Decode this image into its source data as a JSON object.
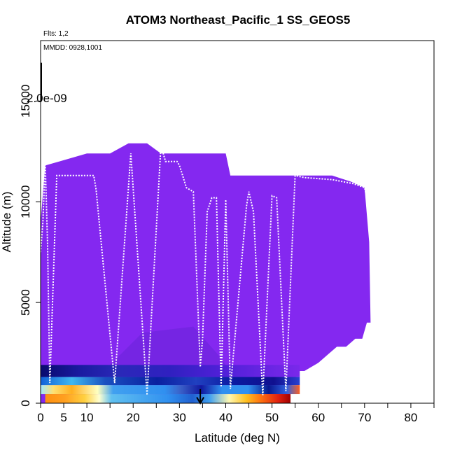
{
  "chart_data": {
    "type": "heatmap",
    "title": "ATOM3 Northeast_Pacific_1 SS_GEOS5",
    "xlabel": "Latitude (deg N)",
    "ylabel": "Altitude (m)",
    "xlim": [
      0,
      85
    ],
    "ylim": [
      0,
      18000
    ],
    "x_ticks": [
      0,
      5,
      10,
      20,
      30,
      40,
      50,
      60,
      70,
      80
    ],
    "y_ticks": [
      0,
      5000,
      10000,
      15000
    ],
    "colorbar_label": "2.0e-09",
    "annotations": {
      "flights": "Flts: 1,2",
      "dates": "MMDD: 0928,1001"
    },
    "arrow_marker_latitude": 34.5,
    "background_color": "#8428f0",
    "flight_track_color": "#ffffff",
    "plateau_latitudes": [
      [
        1.5,
        11.5,
        11000
      ],
      [
        11.5,
        34.5,
        12800
      ],
      [
        34.5,
        55.5,
        12200
      ],
      [
        55.5,
        71.5,
        11200
      ]
    ],
    "cloud_edge": [
      [
        0,
        9000
      ],
      [
        1,
        11800
      ],
      [
        4,
        12000
      ],
      [
        10,
        12400
      ],
      [
        15,
        12400
      ],
      [
        19,
        12900
      ],
      [
        23,
        12900
      ],
      [
        26,
        12400
      ],
      [
        40,
        12400
      ],
      [
        41,
        11300
      ],
      [
        53,
        11300
      ],
      [
        57,
        11300
      ],
      [
        63,
        11300
      ],
      [
        67,
        11000
      ],
      [
        70,
        10700
      ],
      [
        71,
        8000
      ],
      [
        71.3,
        4000
      ],
      [
        70.5,
        4000
      ],
      [
        69.5,
        3200
      ],
      [
        68,
        3200
      ],
      [
        66,
        2800
      ],
      [
        64,
        2800
      ],
      [
        62,
        2400
      ],
      [
        60,
        2000
      ],
      [
        57,
        1600
      ],
      [
        56,
        1600
      ],
      [
        55,
        1200
      ],
      [
        54,
        800
      ],
      [
        53.5,
        0
      ]
    ],
    "flight_track": [
      [
        0,
        7500
      ],
      [
        0.5,
        9000
      ],
      [
        1,
        11900
      ],
      [
        1.5,
        8000
      ],
      [
        2,
        1000
      ],
      [
        3.5,
        11300
      ],
      [
        11.5,
        11300
      ],
      [
        12,
        10600
      ],
      [
        16,
        1000
      ],
      [
        19.5,
        12400
      ],
      [
        23,
        400
      ],
      [
        26,
        12800
      ],
      [
        27,
        12000
      ],
      [
        29.5,
        12000
      ],
      [
        30,
        11800
      ],
      [
        31.5,
        10700
      ],
      [
        33,
        10500
      ],
      [
        34.5,
        1800
      ],
      [
        35,
        3200
      ],
      [
        36,
        9500
      ],
      [
        37,
        10200
      ],
      [
        38,
        10200
      ],
      [
        39,
        800
      ],
      [
        40,
        10100
      ],
      [
        41,
        700
      ],
      [
        44.5,
        9800
      ],
      [
        45,
        10500
      ],
      [
        46,
        9500
      ],
      [
        48,
        400
      ],
      [
        50,
        10300
      ],
      [
        51,
        10200
      ],
      [
        53,
        600
      ],
      [
        55,
        11300
      ],
      [
        57,
        11200
      ],
      [
        63,
        11100
      ],
      [
        67.5,
        10900
      ],
      [
        70,
        10700
      ],
      [
        70.5,
        10200
      ]
    ],
    "boundary_layer": [
      {
        "alt": [
          1300,
          1900
        ],
        "stops": [
          [
            0,
            "#080b6e"
          ],
          [
            0.15,
            "#1a1aa0"
          ],
          [
            0.3,
            "#2a28b8"
          ],
          [
            0.5,
            "#3020c0"
          ],
          [
            0.7,
            "#5020d8"
          ],
          [
            1,
            "#7a28ea"
          ]
        ],
        "xrange": [
          0,
          56
        ]
      },
      {
        "alt": [
          900,
          1300
        ],
        "stops": [
          [
            0,
            "#1060d8"
          ],
          [
            0.12,
            "#40b8f0"
          ],
          [
            0.25,
            "#1a50c0"
          ],
          [
            0.45,
            "#0a20a0"
          ],
          [
            0.6,
            "#2040c0"
          ],
          [
            0.75,
            "#0a1aa0"
          ],
          [
            0.9,
            "#101090"
          ],
          [
            1,
            "#2a40d0"
          ]
        ],
        "xrange": [
          0,
          56
        ]
      },
      {
        "alt": [
          450,
          900
        ],
        "stops": [
          [
            0,
            "#a0e8ff"
          ],
          [
            0.05,
            "#ffe070"
          ],
          [
            0.12,
            "#ffb020"
          ],
          [
            0.22,
            "#ffffc0"
          ],
          [
            0.28,
            "#40a0f0"
          ],
          [
            0.48,
            "#3090f0"
          ],
          [
            0.54,
            "#3a60c8"
          ],
          [
            0.62,
            "#1018a0"
          ],
          [
            0.7,
            "#3090f0"
          ],
          [
            0.8,
            "#3090f0"
          ],
          [
            0.88,
            "#081890"
          ],
          [
            0.95,
            "#3060e0"
          ],
          [
            1,
            "#ff6020"
          ]
        ],
        "xrange": [
          0,
          56
        ]
      },
      {
        "alt": [
          0,
          450
        ],
        "stops": [
          [
            0,
            "#ff9010"
          ],
          [
            0.08,
            "#ffa020"
          ],
          [
            0.16,
            "#ffd040"
          ],
          [
            0.22,
            "#ffffd0"
          ],
          [
            0.27,
            "#60c0f0"
          ],
          [
            0.5,
            "#3090f0"
          ],
          [
            0.6,
            "#2060d0"
          ],
          [
            0.67,
            "#40a0f0"
          ],
          [
            0.75,
            "#fff8b0"
          ],
          [
            0.82,
            "#ffc020"
          ],
          [
            0.88,
            "#ff7010"
          ],
          [
            0.95,
            "#e02010"
          ],
          [
            1,
            "#a00000"
          ]
        ],
        "xrange": [
          1,
          54
        ]
      }
    ]
  }
}
